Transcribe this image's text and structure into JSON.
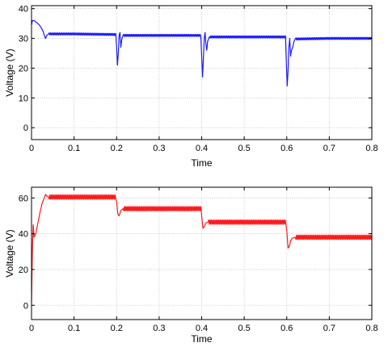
{
  "chart_data": [
    {
      "type": "line",
      "title": "",
      "xlabel": "Time",
      "ylabel": "Voltage (V)",
      "xlim": [
        0,
        0.8
      ],
      "ylim": [
        -4,
        41
      ],
      "xticks": [
        0,
        0.1,
        0.2,
        0.3,
        0.4,
        0.5,
        0.6,
        0.7,
        0.8
      ],
      "xtick_labels": [
        "0",
        "0.1",
        "0.2",
        "0.3",
        "0.4",
        "0.5",
        "0.6",
        "0.7",
        "0.8"
      ],
      "yticks": [
        0,
        10,
        20,
        30,
        40
      ],
      "ytick_labels": [
        "0",
        "10",
        "20",
        "30",
        "40"
      ],
      "grid": true,
      "series": [
        {
          "color": "#1a1aff",
          "ripple_amp": 0.35,
          "points": [
            [
              0,
              34.5
            ],
            [
              0.002,
              36.0
            ],
            [
              0.006,
              36.0
            ],
            [
              0.01,
              35.5
            ],
            [
              0.015,
              35.0
            ],
            [
              0.02,
              34.2
            ],
            [
              0.025,
              33.0
            ],
            [
              0.028,
              32.0
            ],
            [
              0.03,
              31.0
            ],
            [
              0.033,
              30.0
            ],
            [
              0.036,
              31.0
            ],
            [
              0.04,
              31.5
            ],
            [
              0.1,
              31.5
            ],
            [
              0.198,
              31.3
            ],
            [
              0.2,
              27.0
            ],
            [
              0.202,
              21.0
            ],
            [
              0.204,
              25.0
            ],
            [
              0.206,
              31.0
            ],
            [
              0.208,
              32.0
            ],
            [
              0.21,
              27.0
            ],
            [
              0.212,
              29.5
            ],
            [
              0.215,
              31.0
            ],
            [
              0.3,
              31.0
            ],
            [
              0.398,
              31.0
            ],
            [
              0.4,
              24.0
            ],
            [
              0.402,
              17.0
            ],
            [
              0.404,
              23.0
            ],
            [
              0.406,
              30.0
            ],
            [
              0.408,
              32.0
            ],
            [
              0.41,
              28.0
            ],
            [
              0.412,
              26.0
            ],
            [
              0.414,
              29.0
            ],
            [
              0.418,
              30.5
            ],
            [
              0.5,
              30.5
            ],
            [
              0.597,
              30.5
            ],
            [
              0.599,
              22.0
            ],
            [
              0.601,
              14.0
            ],
            [
              0.603,
              19.0
            ],
            [
              0.605,
              27.0
            ],
            [
              0.607,
              30.0
            ],
            [
              0.609,
              24.0
            ],
            [
              0.611,
              26.0
            ],
            [
              0.614,
              27.0
            ],
            [
              0.617,
              29.0
            ],
            [
              0.62,
              29.8
            ],
            [
              0.7,
              30.0
            ],
            [
              0.8,
              30.0
            ]
          ]
        }
      ]
    },
    {
      "type": "line",
      "title": "",
      "xlabel": "Time",
      "ylabel": "Voltage (V)",
      "xlim": [
        0,
        0.8
      ],
      "ylim": [
        -8,
        66
      ],
      "xticks": [
        0,
        0.1,
        0.2,
        0.3,
        0.4,
        0.5,
        0.6,
        0.7,
        0.8
      ],
      "xtick_labels": [
        "0",
        "0.1",
        "0.2",
        "0.3",
        "0.4",
        "0.5",
        "0.6",
        "0.7",
        "0.8"
      ],
      "yticks": [
        0,
        20,
        40,
        60
      ],
      "ytick_labels": [
        "0",
        "20",
        "40",
        "60"
      ],
      "grid": true,
      "series": [
        {
          "color": "#ff1a1a",
          "ripple_amp": 1.2,
          "points": [
            [
              0,
              2
            ],
            [
              0.002,
              30.0
            ],
            [
              0.004,
              45.0
            ],
            [
              0.006,
              38.0
            ],
            [
              0.01,
              40.0
            ],
            [
              0.015,
              46.0
            ],
            [
              0.02,
              52.0
            ],
            [
              0.025,
              57.0
            ],
            [
              0.03,
              60.0
            ],
            [
              0.033,
              62.0
            ],
            [
              0.036,
              61.0
            ],
            [
              0.04,
              60.5
            ],
            [
              0.1,
              60.5
            ],
            [
              0.198,
              60.5
            ],
            [
              0.2,
              58.0
            ],
            [
              0.203,
              51.0
            ],
            [
              0.206,
              50.0
            ],
            [
              0.21,
              53.0
            ],
            [
              0.215,
              54.0
            ],
            [
              0.3,
              54.0
            ],
            [
              0.398,
              54.0
            ],
            [
              0.4,
              50.0
            ],
            [
              0.403,
              43.0
            ],
            [
              0.406,
              44.0
            ],
            [
              0.41,
              46.0
            ],
            [
              0.415,
              46.5
            ],
            [
              0.5,
              46.5
            ],
            [
              0.598,
              46.5
            ],
            [
              0.6,
              42.0
            ],
            [
              0.603,
              32.0
            ],
            [
              0.606,
              33.0
            ],
            [
              0.609,
              36.0
            ],
            [
              0.613,
              37.5
            ],
            [
              0.62,
              38.0
            ],
            [
              0.7,
              38.0
            ],
            [
              0.8,
              38.0
            ]
          ]
        }
      ]
    }
  ]
}
